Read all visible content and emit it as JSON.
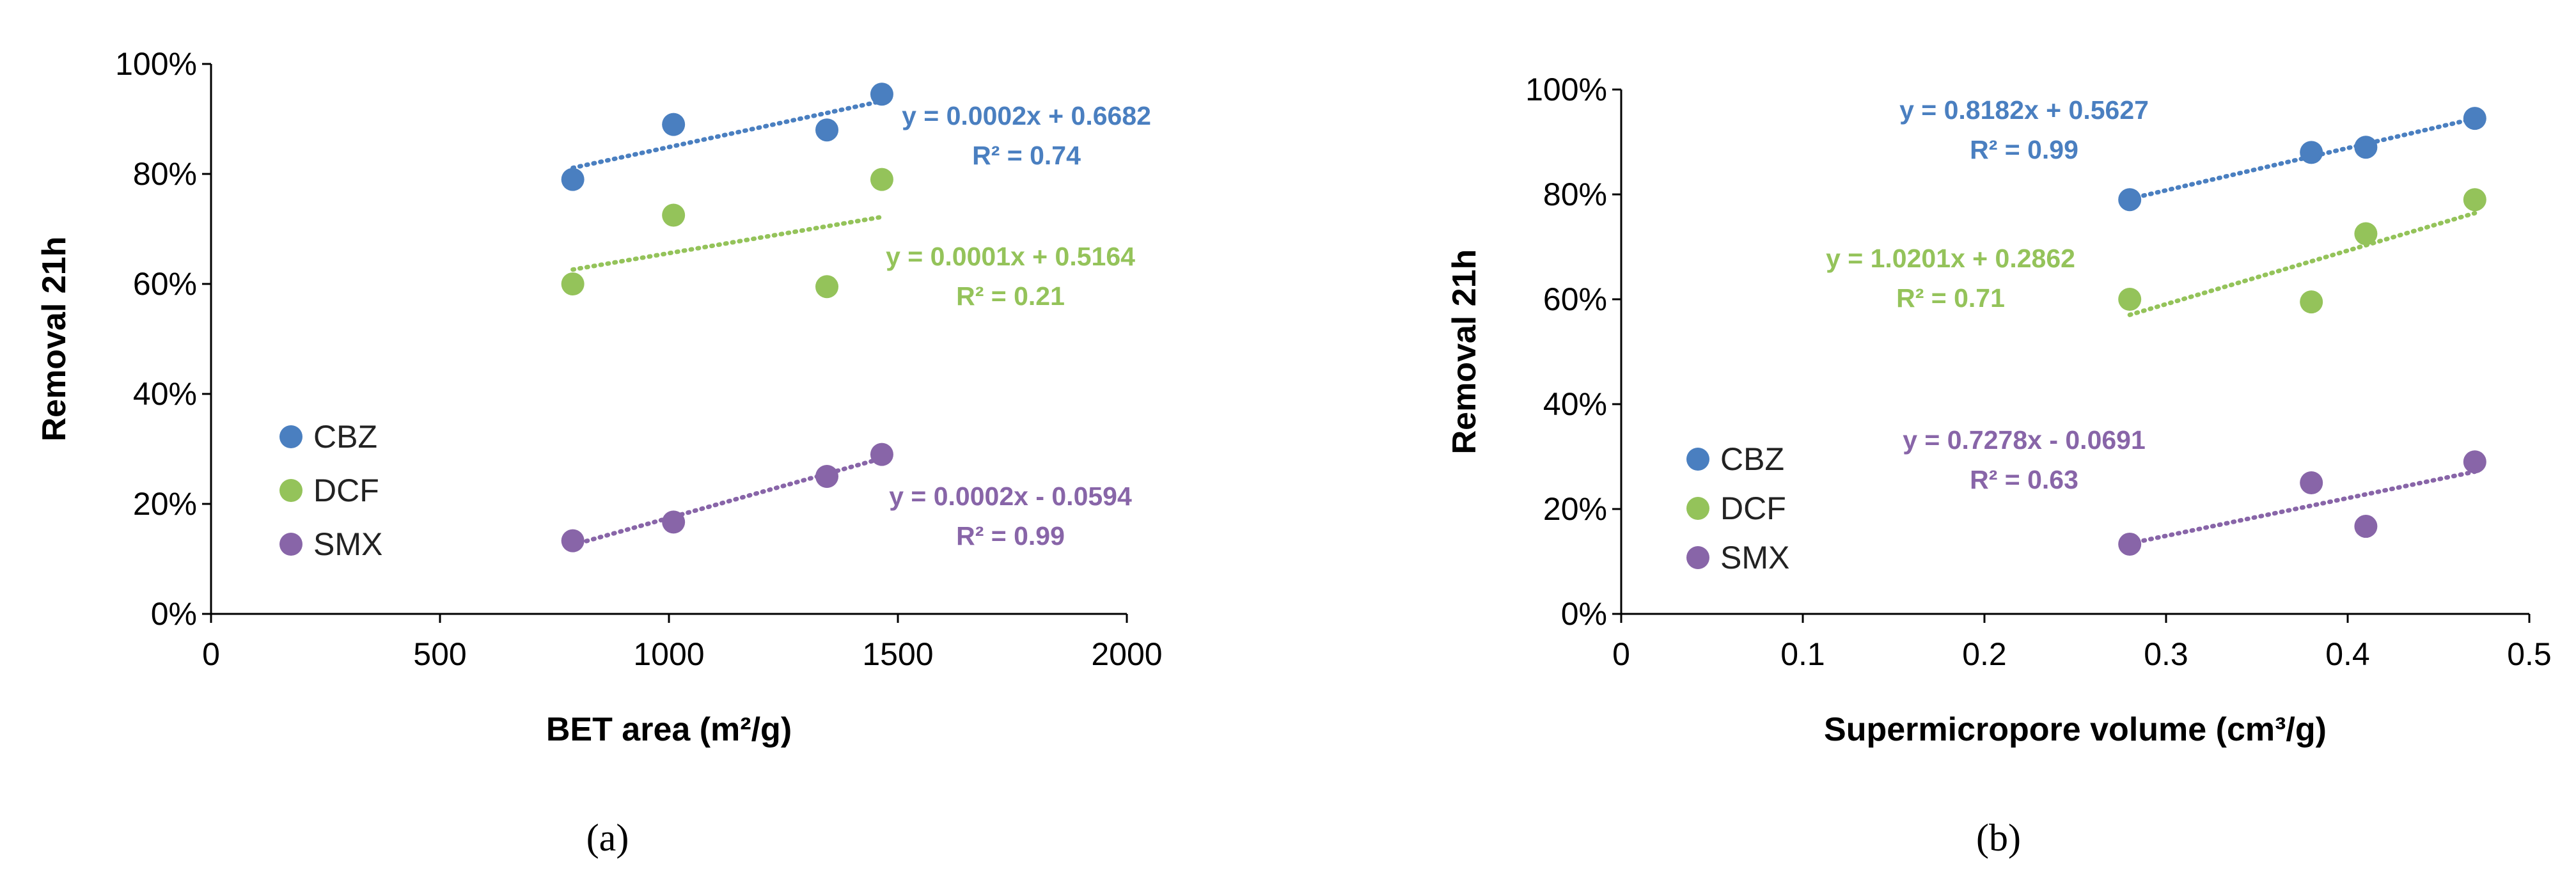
{
  "series_colors": {
    "CBZ": "#4a7fc0",
    "DCF": "#94c35a",
    "SMX": "#8865a8"
  },
  "chart_data": [
    {
      "type": "scatter",
      "panel_label": "(a)",
      "xlabel": "BET area (m²/g)",
      "ylabel": "Removal 21h",
      "xlim": [
        0,
        2000
      ],
      "ylim": [
        0,
        1
      ],
      "x_ticks": [
        0,
        500,
        1000,
        1500,
        2000
      ],
      "x_tick_labels": [
        "0",
        "500",
        "1000",
        "1500",
        "2000"
      ],
      "y_ticks": [
        0,
        0.2,
        0.4,
        0.6,
        0.8,
        1.0
      ],
      "y_tick_labels": [
        "0%",
        "20%",
        "40%",
        "60%",
        "80%",
        "100%"
      ],
      "grid": false,
      "legend": [
        "CBZ",
        "DCF",
        "SMX"
      ],
      "legend_position": "left",
      "series": [
        {
          "name": "CBZ",
          "x": [
            790,
            1010,
            1345,
            1465
          ],
          "y": [
            0.79,
            0.89,
            0.88,
            0.945
          ],
          "trendline": {
            "x": [
              790,
              1465
            ]
          },
          "equation": "y = 0.0002x + 0.6682",
          "r2": "R² = 0.74"
        },
        {
          "name": "DCF",
          "x": [
            790,
            1010,
            1345,
            1465
          ],
          "y": [
            0.6,
            0.725,
            0.595,
            0.79
          ],
          "trendline": {
            "x": [
              790,
              1465
            ]
          },
          "equation": "y = 0.0001x + 0.5164",
          "r2": "R² = 0.21"
        },
        {
          "name": "SMX",
          "x": [
            790,
            1010,
            1345,
            1465
          ],
          "y": [
            0.133,
            0.167,
            0.25,
            0.29
          ],
          "trendline": {
            "x": [
              790,
              1465
            ]
          },
          "equation": "y = 0.0002x - 0.0594",
          "r2": "R² = 0.99"
        }
      ]
    },
    {
      "type": "scatter",
      "panel_label": "(b)",
      "xlabel": "Supermicropore volume (cm³/g)",
      "ylabel": "Removal 21h",
      "xlim": [
        0,
        0.5
      ],
      "ylim": [
        0,
        1
      ],
      "x_ticks": [
        0,
        0.1,
        0.2,
        0.3,
        0.4,
        0.5
      ],
      "x_tick_labels": [
        "0",
        "0.1",
        "0.2",
        "0.3",
        "0.4",
        "0.5"
      ],
      "y_ticks": [
        0,
        0.2,
        0.4,
        0.6,
        0.8,
        1.0
      ],
      "y_tick_labels": [
        "0%",
        "20%",
        "40%",
        "60%",
        "80%",
        "100%"
      ],
      "grid": false,
      "legend": [
        "CBZ",
        "DCF",
        "SMX"
      ],
      "legend_position": "left",
      "series": [
        {
          "name": "CBZ",
          "x": [
            0.28,
            0.38,
            0.41,
            0.47
          ],
          "y": [
            0.79,
            0.88,
            0.89,
            0.945
          ],
          "trendline": {
            "x": [
              0.28,
              0.47
            ]
          },
          "equation": "y = 0.8182x + 0.5627",
          "r2": "R² = 0.99"
        },
        {
          "name": "DCF",
          "x": [
            0.28,
            0.38,
            0.41,
            0.47
          ],
          "y": [
            0.6,
            0.595,
            0.725,
            0.79
          ],
          "trendline": {
            "x": [
              0.28,
              0.47
            ]
          },
          "equation": "y = 1.0201x + 0.2862",
          "r2": "R² = 0.71"
        },
        {
          "name": "SMX",
          "x": [
            0.28,
            0.38,
            0.41,
            0.47
          ],
          "y": [
            0.133,
            0.25,
            0.167,
            0.29
          ],
          "trendline": {
            "x": [
              0.28,
              0.47
            ]
          },
          "equation": "y = 0.7278x - 0.0691",
          "r2": "R² = 0.63"
        }
      ]
    }
  ]
}
